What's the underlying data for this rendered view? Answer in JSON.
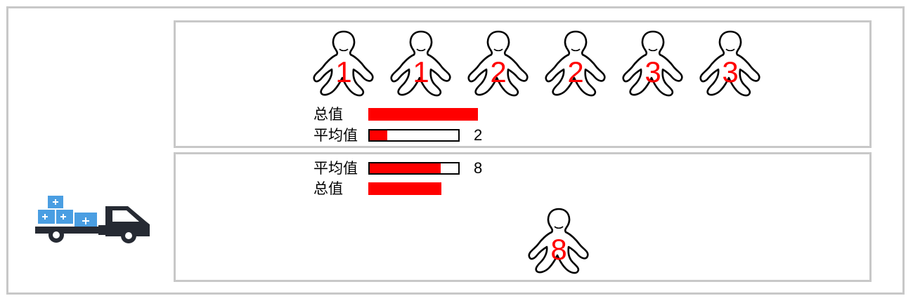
{
  "colors": {
    "accent": "#ff0000",
    "panel_border": "#c8c8c8",
    "truck_box": "#4a9ee2",
    "truck_body": "#262a33"
  },
  "icons": {
    "person": "person-outline-icon",
    "truck": "delivery-truck-icon"
  },
  "top_group": {
    "figures": [
      {
        "number": "1"
      },
      {
        "number": "1"
      },
      {
        "number": "2"
      },
      {
        "number": "2"
      },
      {
        "number": "3"
      },
      {
        "number": "3"
      }
    ],
    "total": {
      "label": "总值",
      "value": 12
    },
    "average": {
      "label": "平均值",
      "value": 2,
      "value_text": "2"
    }
  },
  "bottom_group": {
    "figures": [
      {
        "number": "8"
      }
    ],
    "average": {
      "label": "平均值",
      "value": 8,
      "value_text": "8"
    },
    "total": {
      "label": "总值",
      "value": 8
    }
  },
  "scale_max": 10
}
